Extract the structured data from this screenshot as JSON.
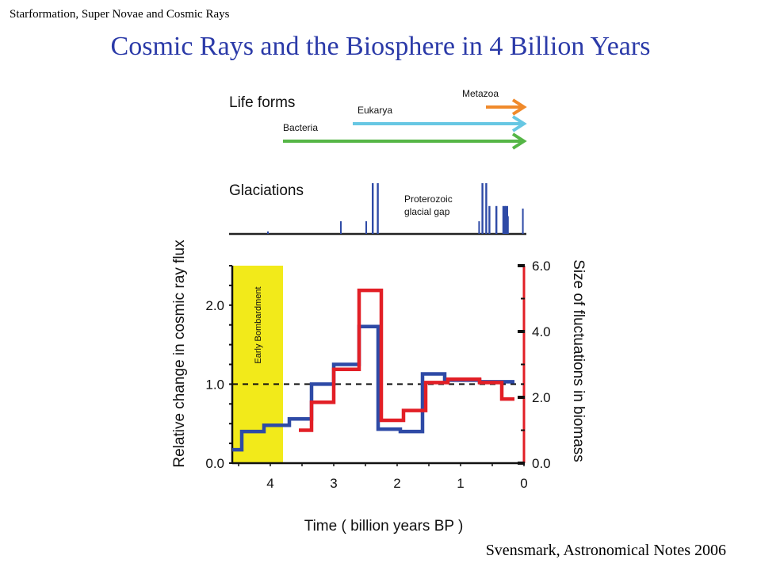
{
  "slide": {
    "header_note": "Starformation, Super Novae and Cosmic Rays",
    "title": "Cosmic Rays and the Biosphere in 4 Billion Years",
    "citation": "Svensmark, Astronomical Notes 2006"
  },
  "chart_data": [
    {
      "type": "line",
      "panel": "life-forms",
      "title": "Life forms",
      "series": [
        {
          "name": "Bacteria",
          "color": "#55b646",
          "start_gyr": 3.8,
          "end_gyr": 0
        },
        {
          "name": "Eukarya",
          "color": "#67c7e3",
          "start_gyr": 2.7,
          "end_gyr": 0
        },
        {
          "name": "Metazoa",
          "color": "#f08a2b",
          "start_gyr": 0.6,
          "end_gyr": 0
        }
      ]
    },
    {
      "type": "bar",
      "panel": "glaciations",
      "title": "Glaciations",
      "annotation": "Proterozoic\nglacial gap",
      "color": "#2e4aa6",
      "events": [
        {
          "t": 4.05,
          "h": 0.05,
          "w": 0.01
        },
        {
          "t": 2.9,
          "h": 0.25,
          "w": 0.02
        },
        {
          "t": 2.5,
          "h": 0.25,
          "w": 0.02
        },
        {
          "t": 2.4,
          "h": 1.0,
          "w": 0.03
        },
        {
          "t": 2.32,
          "h": 1.0,
          "w": 0.03
        },
        {
          "t": 0.72,
          "h": 0.25,
          "w": 0.02
        },
        {
          "t": 0.67,
          "h": 1.0,
          "w": 0.03
        },
        {
          "t": 0.61,
          "h": 1.0,
          "w": 0.03
        },
        {
          "t": 0.56,
          "h": 0.55,
          "w": 0.03
        },
        {
          "t": 0.45,
          "h": 0.55,
          "w": 0.03
        },
        {
          "t": 0.34,
          "h": 0.55,
          "w": 0.05
        },
        {
          "t": 0.3,
          "h": 0.55,
          "w": 0.05
        },
        {
          "t": 0.27,
          "h": 0.35,
          "w": 0.03
        },
        {
          "t": 0.03,
          "h": 0.5,
          "w": 0.02
        }
      ]
    },
    {
      "type": "line",
      "panel": "main",
      "xlabel": "Time ( billion years  BP )",
      "ylabel": "Relative change in cosmic ray flux",
      "ylabel_right": "Size of fluctuations in biomass",
      "xlim": [
        4.6,
        0
      ],
      "ylim": [
        0,
        2.5
      ],
      "ylim_right": [
        0,
        6.0
      ],
      "x_ticks": [
        "4",
        "3",
        "2",
        "1",
        "0"
      ],
      "y_ticks": [
        "0.0",
        "1.0",
        "2.0"
      ],
      "y_ticks_right": [
        "0.0",
        "2.0",
        "4.0",
        "6.0"
      ],
      "reference_line": 1.0,
      "shaded_region": {
        "label": "Early Bombardment",
        "x_start": 4.6,
        "x_end": 3.8,
        "color": "#f2ea1a"
      },
      "series": [
        {
          "name": "cosmic ray flux",
          "axis": "left",
          "color": "#2e4aa6",
          "step": [
            [
              4.6,
              0.17
            ],
            [
              4.45,
              0.4
            ],
            [
              4.1,
              0.48
            ],
            [
              3.7,
              0.56
            ],
            [
              3.35,
              1.0
            ],
            [
              3.0,
              1.25
            ],
            [
              2.6,
              1.73
            ],
            [
              2.3,
              0.43
            ],
            [
              1.95,
              0.4
            ],
            [
              1.6,
              1.13
            ],
            [
              1.25,
              1.05
            ],
            [
              0.7,
              1.03
            ],
            [
              0.15,
              1.03
            ]
          ]
        },
        {
          "name": "fluctuations in biomass",
          "axis": "right",
          "color": "#e21f26",
          "step": [
            [
              3.55,
              1.0
            ],
            [
              3.35,
              1.85
            ],
            [
              3.0,
              2.85
            ],
            [
              2.6,
              5.25
            ],
            [
              2.25,
              1.3
            ],
            [
              1.9,
              1.6
            ],
            [
              1.55,
              2.45
            ],
            [
              1.2,
              2.55
            ],
            [
              0.7,
              2.45
            ],
            [
              0.35,
              1.95
            ],
            [
              0.15,
              1.95
            ]
          ]
        }
      ]
    }
  ]
}
